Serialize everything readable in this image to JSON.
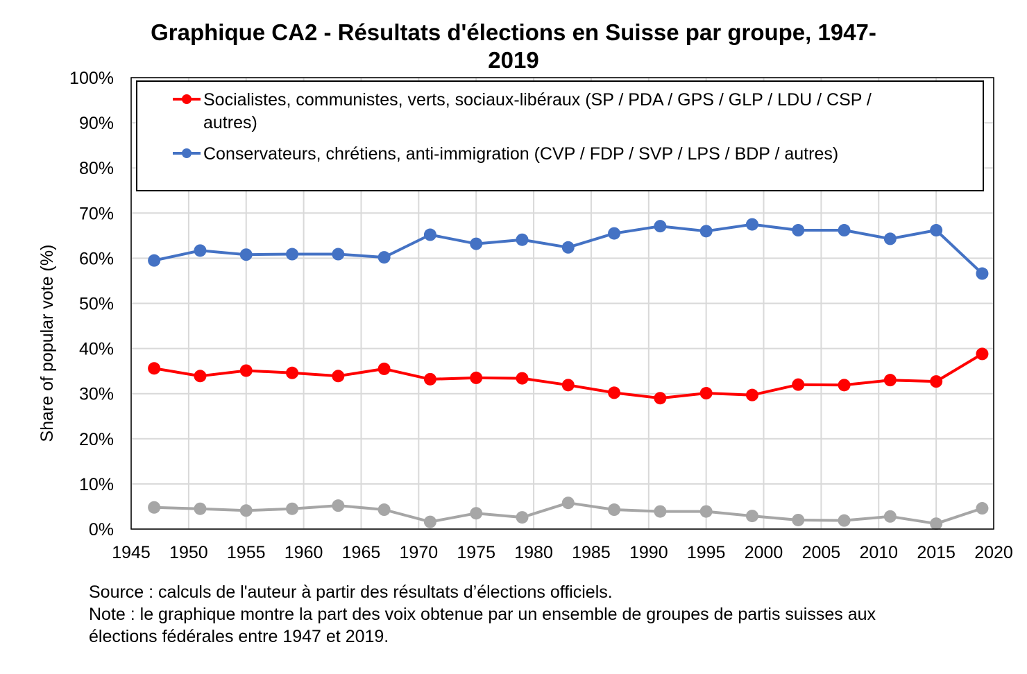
{
  "chart_data": {
    "type": "line",
    "title_line1": "Graphique CA2 - Résultats d'élections en Suisse par groupe, 1947-",
    "title_line2": "2019",
    "xlabel": "",
    "ylabel": "Share of popular vote (%)",
    "xlim": [
      1945,
      2020
    ],
    "ylim": [
      0,
      100
    ],
    "x_ticks": [
      "1945",
      "1950",
      "1955",
      "1960",
      "1965",
      "1970",
      "1975",
      "1980",
      "1985",
      "1990",
      "1995",
      "2000",
      "2005",
      "2010",
      "2015",
      "2020"
    ],
    "y_ticks": [
      "0%",
      "10%",
      "20%",
      "30%",
      "40%",
      "50%",
      "60%",
      "70%",
      "80%",
      "90%",
      "100%"
    ],
    "grid": true,
    "legend_position": "top-right",
    "x": [
      1947,
      1951,
      1955,
      1959,
      1963,
      1967,
      1971,
      1975,
      1979,
      1983,
      1987,
      1991,
      1995,
      1999,
      2003,
      2007,
      2011,
      2015,
      2019
    ],
    "series": [
      {
        "key": "socialistes",
        "name_line1": "Socialistes, communistes, verts, sociaux-libéraux (SP / PDA / GPS / GLP / LDU / CSP /",
        "name_line2": "autres)",
        "color": "#ff0000",
        "values": [
          35.6,
          33.9,
          35.1,
          34.6,
          33.9,
          35.5,
          33.2,
          33.5,
          33.4,
          31.9,
          30.2,
          29.0,
          30.1,
          29.7,
          32.0,
          31.9,
          33.0,
          32.7,
          38.8
        ]
      },
      {
        "key": "conservateurs",
        "name_line1": "Conservateurs, chrétiens, anti-immigration (CVP / FDP / SVP / LPS / BDP / autres)",
        "name_line2": "",
        "color": "#4472c4",
        "values": [
          59.5,
          61.7,
          60.8,
          60.9,
          60.9,
          60.2,
          65.2,
          63.2,
          64.1,
          62.4,
          65.5,
          67.1,
          66.0,
          67.5,
          66.2,
          66.2,
          64.3,
          66.2,
          56.6
        ]
      },
      {
        "key": "autres",
        "name_line1": "",
        "name_line2": "",
        "color": "#a6a6a6",
        "values": [
          4.8,
          4.5,
          4.1,
          4.5,
          5.2,
          4.3,
          1.6,
          3.5,
          2.6,
          5.8,
          4.3,
          3.9,
          3.9,
          2.9,
          2.0,
          1.9,
          2.8,
          1.2,
          4.6
        ]
      }
    ]
  },
  "footnote": {
    "line1": "Source : calculs de l'auteur à partir des résultats d’élections officiels.",
    "line2": "Note : le graphique montre la part des voix obtenue par un ensemble de groupes de partis suisses aux",
    "line3": "élections fédérales entre 1947 et 2019."
  }
}
